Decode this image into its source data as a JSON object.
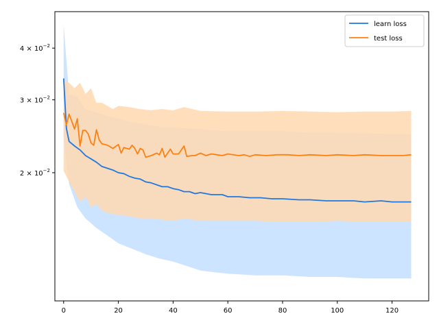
{
  "chart_data": {
    "type": "line",
    "title": "",
    "xlabel": "",
    "ylabel": "",
    "xlim": [
      -3.2,
      133.4
    ],
    "ylim": [
      0.0098,
      0.049
    ],
    "yscale": "log",
    "grid": false,
    "legend_position": "top-right",
    "x_ticks": [
      0,
      20,
      40,
      60,
      80,
      100,
      120
    ],
    "x_tick_labels": [
      "0",
      "20",
      "40",
      "60",
      "80",
      "100",
      "120"
    ],
    "y_ticks": [
      0.02,
      0.03,
      0.04
    ],
    "y_tick_labels": [
      {
        "mantissa": "2",
        "base": "10",
        "exp": "−2"
      },
      {
        "mantissa": "3",
        "base": "10",
        "exp": "−2"
      },
      {
        "mantissa": "4",
        "base": "10",
        "exp": "−2"
      }
    ],
    "series": [
      {
        "name": "learn loss",
        "color": "#1f77e0",
        "band_color": "#cce4ff",
        "band_opacity": 1.0,
        "points": [
          [
            0,
            0.0338
          ],
          [
            1,
            0.0256
          ],
          [
            2,
            0.0238
          ],
          [
            4,
            0.0232
          ],
          [
            6,
            0.0227
          ],
          [
            8,
            0.022
          ],
          [
            10,
            0.0216
          ],
          [
            12,
            0.0212
          ],
          [
            14,
            0.0207
          ],
          [
            16,
            0.0205
          ],
          [
            18,
            0.0203
          ],
          [
            20,
            0.02
          ],
          [
            22,
            0.0199
          ],
          [
            24,
            0.0196
          ],
          [
            26,
            0.0194
          ],
          [
            28,
            0.0193
          ],
          [
            30,
            0.019
          ],
          [
            32,
            0.0189
          ],
          [
            34,
            0.0187
          ],
          [
            36,
            0.0185
          ],
          [
            38,
            0.0185
          ],
          [
            40,
            0.0183
          ],
          [
            42,
            0.0182
          ],
          [
            44,
            0.018
          ],
          [
            46,
            0.018
          ],
          [
            48,
            0.0178
          ],
          [
            50,
            0.0179
          ],
          [
            52,
            0.0178
          ],
          [
            54,
            0.0177
          ],
          [
            56,
            0.0177
          ],
          [
            58,
            0.0177
          ],
          [
            60,
            0.0175
          ],
          [
            64,
            0.0175
          ],
          [
            68,
            0.0174
          ],
          [
            72,
            0.0174
          ],
          [
            76,
            0.0173
          ],
          [
            80,
            0.0173
          ],
          [
            86,
            0.0172
          ],
          [
            90,
            0.0172
          ],
          [
            96,
            0.0171
          ],
          [
            100,
            0.0171
          ],
          [
            106,
            0.0171
          ],
          [
            110,
            0.017
          ],
          [
            116,
            0.0171
          ],
          [
            120,
            0.017
          ],
          [
            124,
            0.017
          ],
          [
            127,
            0.017
          ]
        ],
        "band_upper": [
          [
            0,
            0.0455
          ],
          [
            2,
            0.031
          ],
          [
            5,
            0.0305
          ],
          [
            8,
            0.0285
          ],
          [
            12,
            0.028
          ],
          [
            16,
            0.0274
          ],
          [
            20,
            0.027
          ],
          [
            25,
            0.0265
          ],
          [
            30,
            0.0262
          ],
          [
            35,
            0.0258
          ],
          [
            40,
            0.0257
          ],
          [
            45,
            0.0256
          ],
          [
            50,
            0.0255
          ],
          [
            55,
            0.0253
          ],
          [
            60,
            0.0252
          ],
          [
            70,
            0.0252
          ],
          [
            80,
            0.0252
          ],
          [
            90,
            0.025
          ],
          [
            100,
            0.025
          ],
          [
            110,
            0.0249
          ],
          [
            120,
            0.0248
          ],
          [
            127,
            0.0248
          ]
        ],
        "band_lower": [
          [
            0,
            0.0245
          ],
          [
            2,
            0.0188
          ],
          [
            5,
            0.0165
          ],
          [
            8,
            0.0155
          ],
          [
            12,
            0.0147
          ],
          [
            16,
            0.0141
          ],
          [
            20,
            0.0135
          ],
          [
            25,
            0.0131
          ],
          [
            30,
            0.0127
          ],
          [
            35,
            0.0124
          ],
          [
            40,
            0.0122
          ],
          [
            45,
            0.0119
          ],
          [
            50,
            0.0116
          ],
          [
            55,
            0.0115
          ],
          [
            60,
            0.0114
          ],
          [
            70,
            0.0113
          ],
          [
            80,
            0.0113
          ],
          [
            90,
            0.0112
          ],
          [
            100,
            0.0112
          ],
          [
            110,
            0.0111
          ],
          [
            120,
            0.0111
          ],
          [
            127,
            0.0111
          ]
        ]
      },
      {
        "name": "test loss",
        "color": "#ff7f0e",
        "band_color": "#ffd8b0",
        "band_opacity": 0.85,
        "points": [
          [
            0,
            0.0279
          ],
          [
            1,
            0.0261
          ],
          [
            2,
            0.0277
          ],
          [
            3,
            0.0266
          ],
          [
            4,
            0.0255
          ],
          [
            5,
            0.027
          ],
          [
            6,
            0.0232
          ],
          [
            7,
            0.0253
          ],
          [
            8,
            0.0253
          ],
          [
            9,
            0.0248
          ],
          [
            10,
            0.0236
          ],
          [
            11,
            0.0233
          ],
          [
            12,
            0.0254
          ],
          [
            13,
            0.024
          ],
          [
            14,
            0.0235
          ],
          [
            16,
            0.0233
          ],
          [
            18,
            0.0229
          ],
          [
            20,
            0.0234
          ],
          [
            21,
            0.0223
          ],
          [
            22,
            0.023
          ],
          [
            24,
            0.0228
          ],
          [
            25,
            0.0233
          ],
          [
            26,
            0.0229
          ],
          [
            27,
            0.0222
          ],
          [
            28,
            0.0229
          ],
          [
            29,
            0.0227
          ],
          [
            30,
            0.0218
          ],
          [
            32,
            0.022
          ],
          [
            34,
            0.0223
          ],
          [
            35,
            0.0221
          ],
          [
            36,
            0.0229
          ],
          [
            37,
            0.0218
          ],
          [
            38,
            0.0223
          ],
          [
            39,
            0.0228
          ],
          [
            40,
            0.0222
          ],
          [
            42,
            0.0222
          ],
          [
            44,
            0.0232
          ],
          [
            45,
            0.0219
          ],
          [
            47,
            0.022
          ],
          [
            48,
            0.022
          ],
          [
            50,
            0.0223
          ],
          [
            52,
            0.022
          ],
          [
            54,
            0.0222
          ],
          [
            56,
            0.0221
          ],
          [
            58,
            0.022
          ],
          [
            60,
            0.0222
          ],
          [
            64,
            0.022
          ],
          [
            66,
            0.0221
          ],
          [
            68,
            0.0219
          ],
          [
            70,
            0.0221
          ],
          [
            74,
            0.022
          ],
          [
            78,
            0.0221
          ],
          [
            82,
            0.0221
          ],
          [
            86,
            0.022
          ],
          [
            90,
            0.0221
          ],
          [
            96,
            0.022
          ],
          [
            100,
            0.0221
          ],
          [
            106,
            0.022
          ],
          [
            110,
            0.0221
          ],
          [
            116,
            0.022
          ],
          [
            120,
            0.022
          ],
          [
            124,
            0.022
          ],
          [
            127,
            0.0221
          ]
        ],
        "band_upper": [
          [
            0,
            0.0335
          ],
          [
            2,
            0.033
          ],
          [
            4,
            0.032
          ],
          [
            6,
            0.033
          ],
          [
            8,
            0.031
          ],
          [
            10,
            0.032
          ],
          [
            12,
            0.0295
          ],
          [
            14,
            0.0295
          ],
          [
            16,
            0.029
          ],
          [
            18,
            0.0285
          ],
          [
            20,
            0.029
          ],
          [
            24,
            0.0288
          ],
          [
            28,
            0.0285
          ],
          [
            32,
            0.0283
          ],
          [
            36,
            0.0285
          ],
          [
            40,
            0.0283
          ],
          [
            44,
            0.0288
          ],
          [
            50,
            0.0282
          ],
          [
            60,
            0.0281
          ],
          [
            70,
            0.0281
          ],
          [
            80,
            0.0282
          ],
          [
            90,
            0.0281
          ],
          [
            100,
            0.028
          ],
          [
            110,
            0.0281
          ],
          [
            120,
            0.0281
          ],
          [
            127,
            0.0282
          ]
        ],
        "band_lower": [
          [
            0,
            0.0202
          ],
          [
            2,
            0.019
          ],
          [
            4,
            0.018
          ],
          [
            6,
            0.017
          ],
          [
            8,
            0.0175
          ],
          [
            10,
            0.0165
          ],
          [
            12,
            0.0168
          ],
          [
            14,
            0.0162
          ],
          [
            16,
            0.016
          ],
          [
            20,
            0.0158
          ],
          [
            24,
            0.0157
          ],
          [
            28,
            0.0155
          ],
          [
            32,
            0.0155
          ],
          [
            36,
            0.0154
          ],
          [
            40,
            0.0153
          ],
          [
            44,
            0.0155
          ],
          [
            50,
            0.0153
          ],
          [
            60,
            0.0153
          ],
          [
            70,
            0.0153
          ],
          [
            80,
            0.0152
          ],
          [
            90,
            0.0152
          ],
          [
            100,
            0.0153
          ],
          [
            110,
            0.0152
          ],
          [
            120,
            0.0152
          ],
          [
            127,
            0.0152
          ]
        ]
      }
    ]
  }
}
